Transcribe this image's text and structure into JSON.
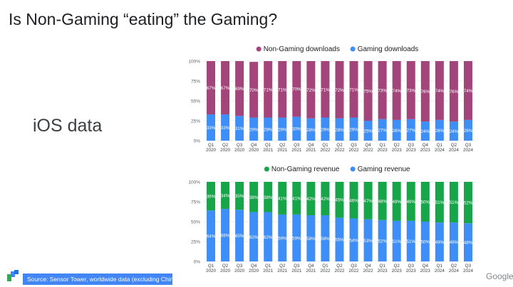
{
  "header": {
    "title": "Is Non-Gaming “eating” the Gaming?"
  },
  "side_label": "iOS data",
  "footer": {
    "source": "Source: Sensor Tower, worldwide data (excluding China)",
    "brand": "Google"
  },
  "colors": {
    "non_gaming_downloads": "#a3457b",
    "gaming": "#3e8ef7",
    "non_gaming_revenue": "#17a54a",
    "source_bg": "#4285f4"
  },
  "chart_data": [
    {
      "type": "bar",
      "stacked": true,
      "percent": true,
      "categories": [
        "Q1\n2020",
        "Q2\n2020",
        "Q3\n2020",
        "Q4\n2020",
        "Q1\n2021",
        "Q2\n2021",
        "Q3\n2021",
        "Q4\n2021",
        "Q1\n2022",
        "Q2\n2022",
        "Q3\n2022",
        "Q4\n2022",
        "Q1\n2023",
        "Q2\n2023",
        "Q3\n2023",
        "Q4\n2023",
        "Q1\n2024",
        "Q2\n2024",
        "Q3\n2024"
      ],
      "series": [
        {
          "name": "Gaming downloads",
          "color": "#3e8ef7",
          "values": [
            33,
            33,
            31,
            29,
            29,
            29,
            30,
            28,
            29,
            28,
            29,
            25,
            27,
            26,
            27,
            24,
            26,
            24,
            26
          ]
        },
        {
          "name": "Non-Gaming downloads",
          "color": "#a3457b",
          "values": [
            67,
            67,
            69,
            70,
            71,
            71,
            70,
            72,
            71,
            72,
            71,
            75,
            73,
            74,
            73,
            76,
            74,
            76,
            74
          ]
        }
      ],
      "ylim": [
        0,
        100
      ],
      "yticks": [
        "0%",
        "25%",
        "50%",
        "75%",
        "100%"
      ],
      "legend_position": "top",
      "grid": true
    },
    {
      "type": "bar",
      "stacked": true,
      "percent": true,
      "categories": [
        "Q1\n2020",
        "Q2\n2020",
        "Q3\n2020",
        "Q4\n2020",
        "Q1\n2021",
        "Q2\n2021",
        "Q3\n2021",
        "Q4\n2021",
        "Q1\n2022",
        "Q2\n2022",
        "Q3\n2022",
        "Q4\n2022",
        "Q1\n2023",
        "Q2\n2023",
        "Q3\n2023",
        "Q4\n2023",
        "Q1\n2024",
        "Q2\n2024",
        "Q3\n2024"
      ],
      "series": [
        {
          "name": "Gaming revenue",
          "color": "#3e8ef7",
          "values": [
            64,
            66,
            65,
            62,
            62,
            59,
            59,
            58,
            58,
            55,
            54,
            53,
            52,
            51,
            51,
            50,
            49,
            49,
            48
          ]
        },
        {
          "name": "Non-Gaming revenue",
          "color": "#17a54a",
          "values": [
            36,
            34,
            35,
            38,
            38,
            41,
            41,
            42,
            42,
            45,
            46,
            47,
            48,
            49,
            49,
            50,
            51,
            51,
            52
          ]
        }
      ],
      "ylim": [
        0,
        100
      ],
      "yticks": [
        "0%",
        "25%",
        "50%",
        "75%",
        "100%"
      ],
      "legend_position": "top",
      "grid": true
    }
  ]
}
